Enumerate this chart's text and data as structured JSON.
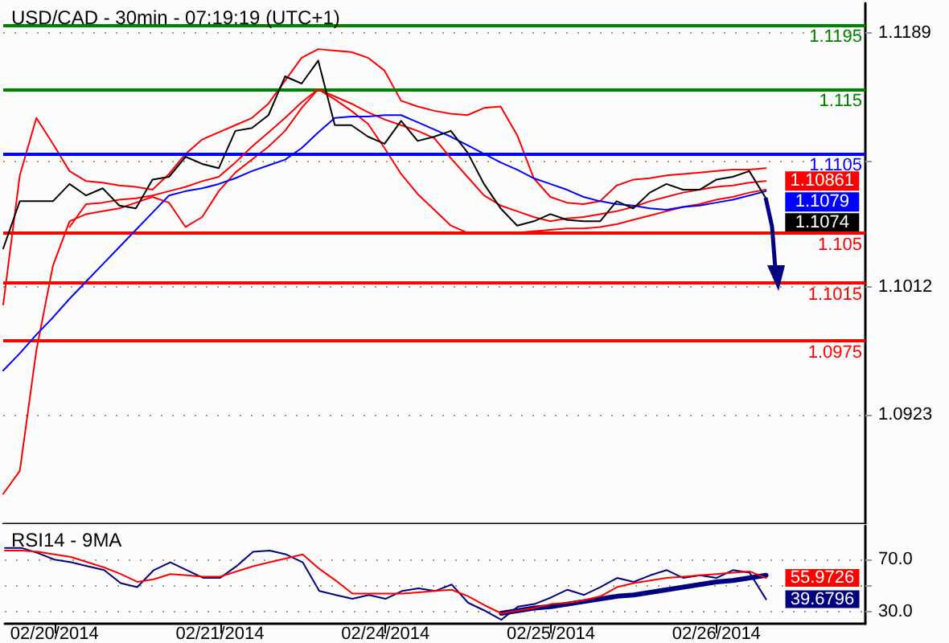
{
  "chart_data": [
    {
      "type": "line",
      "title": "USD/CAD - 30min - 07:19:19 (UTC+1)",
      "categories": [
        null,
        null,
        null,
        null,
        null,
        null,
        null,
        null,
        null,
        null,
        null,
        null,
        null,
        null,
        null,
        null,
        null,
        null,
        null,
        null,
        null,
        null,
        null,
        null,
        null,
        null,
        null,
        null,
        null,
        null,
        null,
        null,
        null,
        null,
        null,
        null,
        null,
        null,
        null,
        null,
        null,
        null,
        null,
        null,
        null,
        null,
        null,
        null,
        null,
        null,
        null,
        null,
        null
      ],
      "ylim": [
        1.0847,
        1.121
      ],
      "yticks": [
        1.1189,
        {
          "value": 1.11,
          "label": null
        },
        1.1012,
        1.0923
      ],
      "tick_labels": "y",
      "grid": "y",
      "marker": "none",
      "line_style": "solid",
      "series": [
        {
          "color": "#ff0000",
          "values": [
            1.1,
            1.109,
            1.113,
            1.1112,
            1.1093,
            1.1086,
            1.1085,
            1.1083,
            1.1082,
            1.108,
            1.1091,
            1.1105,
            1.1115,
            1.112,
            1.1125,
            1.113,
            1.114,
            1.1156,
            1.1172,
            1.1178,
            1.1177,
            1.1176,
            1.1172,
            1.1163,
            1.1142,
            1.1138,
            1.1135,
            1.1133,
            1.1132,
            1.1137,
            1.1138,
            1.1118,
            1.1088,
            1.1075,
            1.1071,
            1.107,
            1.1072,
            1.1083,
            1.1087,
            1.1088,
            1.109,
            1.1091,
            1.1092,
            1.1093,
            1.1094,
            1.1094,
            1.1095,
            null,
            null,
            null,
            null,
            null,
            null
          ]
        },
        {
          "color": "#ff0000",
          "values": [
            1.0868,
            1.0884,
            1.0968,
            1.1027,
            1.1058,
            1.1063,
            1.1065,
            1.1067,
            1.1071,
            1.1075,
            1.1071,
            1.1054,
            1.1061,
            1.1079,
            1.1092,
            1.1101,
            1.111,
            1.1121,
            1.1137,
            1.115,
            1.1143,
            1.1135,
            1.1126,
            1.1109,
            1.1091,
            1.1077,
            1.1066,
            1.1055,
            1.105,
            1.105,
            1.105,
            1.105,
            1.1051,
            1.1052,
            1.1053,
            1.1053,
            1.1054,
            1.1056,
            1.1059,
            1.1062,
            1.1065,
            1.1068,
            1.107,
            1.1073,
            1.1075,
            1.1078,
            1.108,
            null,
            null,
            null,
            null,
            null,
            null
          ]
        },
        {
          "color": "#ff0000",
          "values": [
            null,
            null,
            null,
            null,
            1.1054,
            1.107,
            1.1071,
            1.1073,
            1.1074,
            1.1076,
            1.1079,
            1.1082,
            1.1086,
            1.1089,
            1.1099,
            1.111,
            1.112,
            1.113,
            1.1141,
            1.115,
            1.1145,
            1.114,
            1.1134,
            1.1129,
            1.1125,
            1.1121,
            1.1116,
            1.1102,
            1.1089,
            1.1076,
            1.1069,
            1.1065,
            1.1061,
            1.1058,
            1.106,
            1.1061,
            1.1063,
            1.1065,
            1.1068,
            1.1072,
            1.1075,
            1.1078,
            1.108,
            1.1082,
            1.1083,
            1.1085,
            1.10861,
            null,
            null,
            null,
            null,
            null,
            null
          ],
          "value_labels": [
            null,
            null,
            null,
            null,
            null,
            null,
            null,
            null,
            null,
            null,
            null,
            null,
            null,
            null,
            null,
            null,
            null,
            null,
            null,
            null,
            null,
            null,
            null,
            null,
            null,
            null,
            null,
            null,
            null,
            null,
            null,
            null,
            null,
            null,
            null,
            null,
            null,
            null,
            null,
            null,
            null,
            null,
            null,
            null,
            null,
            null,
            "1.10861",
            null,
            null,
            null,
            null,
            null,
            null
          ]
        },
        {
          "color": "#0000ff",
          "values": [
            1.0954,
            1.0966,
            1.0979,
            1.0991,
            1.1004,
            1.1016,
            1.1028,
            1.104,
            1.1052,
            1.1064,
            1.1076,
            1.1079,
            1.1081,
            1.1084,
            1.1088,
            1.1093,
            1.1097,
            1.1101,
            1.1109,
            1.112,
            1.113,
            1.1131,
            1.1131,
            1.1132,
            1.1132,
            1.1127,
            1.1122,
            1.1117,
            1.1111,
            1.1105,
            1.1099,
            1.1094,
            1.1088,
            1.1084,
            1.108,
            1.1075,
            1.1072,
            1.107,
            1.1069,
            1.1067,
            1.1066,
            1.1068,
            1.1069,
            1.1071,
            1.1073,
            1.1076,
            1.1079,
            null,
            null,
            null,
            null,
            null,
            null
          ],
          "value_labels": [
            null,
            null,
            null,
            null,
            null,
            null,
            null,
            null,
            null,
            null,
            null,
            null,
            null,
            null,
            null,
            null,
            null,
            null,
            null,
            null,
            null,
            null,
            null,
            null,
            null,
            null,
            null,
            null,
            null,
            null,
            null,
            null,
            null,
            null,
            null,
            null,
            null,
            null,
            null,
            null,
            null,
            null,
            null,
            null,
            null,
            null,
            "1.1079",
            null,
            null,
            null,
            null,
            null,
            null
          ]
        },
        {
          "color": "#000000",
          "values": [
            1.1039,
            1.1072,
            1.1072,
            1.1072,
            1.1084,
            1.1076,
            1.1081,
            1.1069,
            1.1067,
            1.1087,
            1.1089,
            1.1103,
            1.1098,
            1.1095,
            1.1121,
            1.1123,
            1.1132,
            1.1159,
            1.1154,
            1.117,
            1.1125,
            1.1125,
            1.1117,
            1.1112,
            1.1128,
            1.1114,
            1.1117,
            1.1121,
            1.1106,
            1.1084,
            1.1067,
            1.1055,
            1.1058,
            1.1063,
            1.1059,
            1.1058,
            1.1058,
            1.1072,
            1.1067,
            1.1078,
            1.1084,
            1.108,
            1.108,
            1.1087,
            1.1089,
            1.1093,
            1.1074,
            null,
            null,
            null,
            null,
            null,
            null
          ],
          "value_labels": [
            null,
            null,
            null,
            null,
            null,
            null,
            null,
            null,
            null,
            null,
            null,
            null,
            null,
            null,
            null,
            null,
            null,
            null,
            null,
            null,
            null,
            null,
            null,
            null,
            null,
            null,
            null,
            null,
            null,
            null,
            null,
            null,
            null,
            null,
            null,
            null,
            null,
            null,
            null,
            null,
            null,
            null,
            null,
            null,
            null,
            null,
            "1.1074",
            null,
            null,
            null,
            null,
            null,
            null
          ]
        }
      ],
      "ref_lines": [
        {
          "axis": "y",
          "value": 1.1195,
          "label": "1.1195",
          "color": "#008000"
        },
        {
          "axis": "y",
          "value": 1.115,
          "label": "1.115",
          "color": "#008000"
        },
        {
          "axis": "y",
          "value": 1.1105,
          "label": "1.1105",
          "color": "#0000ff"
        },
        {
          "axis": "y",
          "value": 1.105,
          "label": "1.105",
          "color": "#ff0000"
        },
        {
          "axis": "y",
          "value": 1.1015,
          "label": "1.1015",
          "color": "#ff0000"
        },
        {
          "axis": "y",
          "value": 1.0975,
          "label": "1.0975",
          "color": "#ff0000"
        }
      ]
    },
    {
      "type": "line",
      "title": "RSI14 - 9MA",
      "categories": [
        null,
        null,
        null,
        "02/20/2014",
        null,
        null,
        null,
        null,
        null,
        null,
        null,
        null,
        null,
        "02/21/2014",
        null,
        null,
        null,
        null,
        null,
        null,
        null,
        null,
        null,
        "02/24/2014",
        null,
        null,
        null,
        null,
        null,
        null,
        null,
        null,
        null,
        "02/25/2014",
        null,
        null,
        null,
        null,
        null,
        null,
        null,
        null,
        null,
        "02/26/2014",
        null,
        null,
        null,
        null,
        null,
        null,
        null,
        null,
        null
      ],
      "ylim": [
        21,
        96
      ],
      "yticks": [
        {
          "value": 70,
          "label": "70.0"
        },
        {
          "value": 50,
          "label": null
        },
        {
          "value": 30,
          "label": "30.0"
        }
      ],
      "grid": "y",
      "marker": "none",
      "line_style": "solid",
      "series": [
        {
          "color": "#000080",
          "values": [
            79,
            79,
            75,
            70,
            68,
            65,
            62,
            52,
            49,
            62,
            68,
            62,
            56,
            56,
            65,
            76,
            77,
            74,
            68,
            46,
            43,
            40,
            43,
            40,
            46,
            48,
            46,
            51,
            37,
            31,
            24,
            34,
            36,
            41,
            47,
            43,
            49,
            56,
            53,
            58,
            62,
            56,
            58,
            56,
            62,
            60,
            39.6796,
            null,
            null,
            null,
            null,
            null,
            null
          ],
          "value_labels": [
            null,
            null,
            null,
            null,
            null,
            null,
            null,
            null,
            null,
            null,
            null,
            null,
            null,
            null,
            null,
            null,
            null,
            null,
            null,
            null,
            null,
            null,
            null,
            null,
            null,
            null,
            null,
            null,
            null,
            null,
            null,
            null,
            null,
            null,
            null,
            null,
            null,
            null,
            null,
            null,
            null,
            null,
            null,
            null,
            null,
            null,
            "39.6796",
            null,
            null,
            null,
            null,
            null,
            null
          ]
        },
        {
          "color": "#ff0000",
          "values": [
            77,
            77,
            76,
            74,
            72,
            68,
            64,
            59,
            53,
            55,
            59,
            58,
            57,
            57,
            61,
            65,
            68,
            71,
            74,
            63,
            54,
            44,
            44,
            44,
            44,
            45,
            46,
            47,
            42,
            35,
            29,
            31,
            33,
            36,
            37,
            39,
            42,
            49,
            52,
            54,
            56,
            57,
            58,
            59,
            60,
            61,
            55.9726,
            null,
            null,
            null,
            null,
            null,
            null
          ],
          "value_labels": [
            null,
            null,
            null,
            null,
            null,
            null,
            null,
            null,
            null,
            null,
            null,
            null,
            null,
            null,
            null,
            null,
            null,
            null,
            null,
            null,
            null,
            null,
            null,
            null,
            null,
            null,
            null,
            null,
            null,
            null,
            null,
            null,
            null,
            null,
            null,
            null,
            null,
            null,
            null,
            null,
            null,
            null,
            null,
            null,
            null,
            null,
            "55.9726",
            null,
            null,
            null,
            null,
            null,
            null
          ]
        },
        {
          "color": "#000080",
          "values": [
            null,
            null,
            null,
            null,
            null,
            null,
            null,
            null,
            null,
            null,
            null,
            null,
            null,
            null,
            null,
            null,
            null,
            null,
            null,
            null,
            null,
            null,
            null,
            null,
            null,
            null,
            null,
            null,
            null,
            null,
            29,
            31,
            33,
            34,
            36,
            38,
            40,
            42,
            43,
            45,
            47,
            49,
            51,
            53,
            54,
            56,
            58,
            null,
            null,
            null,
            null,
            null,
            null
          ]
        }
      ]
    }
  ]
}
